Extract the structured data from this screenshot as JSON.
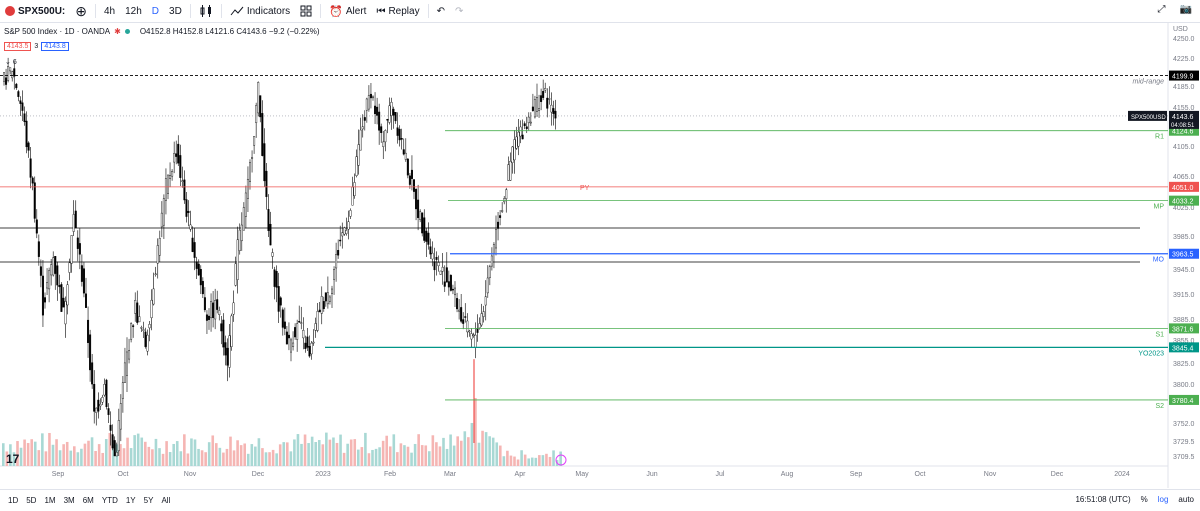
{
  "toolbar": {
    "symbol": "SPX500U:",
    "timeframes": [
      "4h",
      "12h",
      "D",
      "3D"
    ],
    "active_timeframe": "D",
    "indicators_label": "Indicators",
    "alert_label": "Alert",
    "replay_label": "Replay"
  },
  "legend": {
    "title": "S&P 500 Index · 1D · OANDA",
    "ohlc": "O4152.8  H4152.8  L4121.6  C4143.6  −9.2 (−0.22%)",
    "bid": "4143.5",
    "spread": "3",
    "ask": "4143.8",
    "collapse": "6"
  },
  "colors": {
    "up": "#26a69a",
    "down": "#ef5350",
    "candle": "#000000",
    "green_level": "#4caf50",
    "red_level": "#ef5350",
    "blue_level": "#2962ff",
    "teal_level": "#009688"
  },
  "chart_data": {
    "type": "candlestick",
    "currency": "USD",
    "price_ticks": [
      "4250.0",
      "4225.0",
      "4185.0",
      "4155.0",
      "4105.0",
      "4065.0",
      "4025.0",
      "3985.0",
      "3945.0",
      "3915.0",
      "3885.0",
      "3855.0",
      "3825.0",
      "3800.0",
      "3752.0",
      "3729.5",
      "3709.5"
    ],
    "x_labels": [
      "Sep",
      "Oct",
      "Nov",
      "Dec",
      "2023",
      "Feb",
      "Mar",
      "Apr",
      "May",
      "Jun",
      "Jul",
      "Aug",
      "Sep",
      "Oct",
      "Nov",
      "Dec",
      "2024"
    ],
    "current_price": {
      "label": "SPX500USD",
      "value": "4143.6",
      "countdown": "04:08:51"
    },
    "levels": [
      {
        "name": "mid-range",
        "value": 4199.9,
        "value_label": "4199.9"
      },
      {
        "name": "R1",
        "value": 4124.6,
        "value_label": "4124.6"
      },
      {
        "name": "PY",
        "value": 4051.0,
        "value_label": "4051.0"
      },
      {
        "name": "MP",
        "value": 4033.2,
        "value_label": "4033.2"
      },
      {
        "name": "MO",
        "value": 3963.5,
        "value_label": "3963.5"
      },
      {
        "name": "S1",
        "value": 3871.6,
        "value_label": "3871.6"
      },
      {
        "name": "YO2023",
        "value": 3845.4,
        "value_label": "3845.4"
      },
      {
        "name": "S2",
        "value": 3780.4,
        "value_label": "3780.4"
      }
    ],
    "grid": false
  },
  "bottom": {
    "ranges": [
      "1D",
      "5D",
      "1M",
      "3M",
      "6M",
      "YTD",
      "1Y",
      "5Y",
      "All"
    ],
    "time": "16:51:08 (UTC)",
    "percent": "%",
    "log": "log",
    "auto": "auto"
  }
}
